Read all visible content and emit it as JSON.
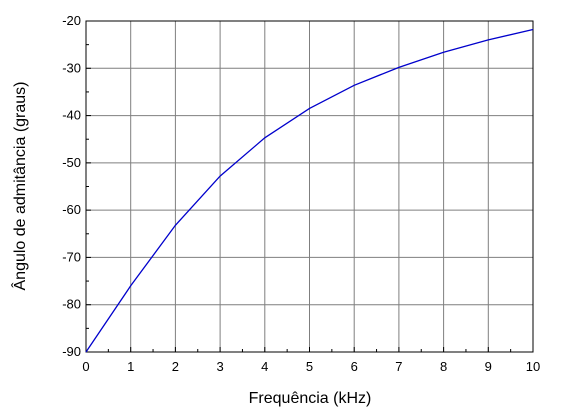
{
  "chart_data": {
    "type": "line",
    "title": "",
    "xlabel": "Frequência (kHz)",
    "ylabel": "Ângulo de admitância (graus)",
    "xlim": [
      0,
      10
    ],
    "ylim": [
      -90,
      -20
    ],
    "xticks": [
      0,
      1,
      2,
      3,
      4,
      5,
      6,
      7,
      8,
      9,
      10
    ],
    "yticks": [
      -90,
      -80,
      -70,
      -60,
      -50,
      -40,
      -30,
      -20
    ],
    "grid": true,
    "series": [
      {
        "color": "#0000cc",
        "x": [
          0,
          1,
          2,
          3,
          4,
          5,
          6,
          7,
          8,
          9,
          10
        ],
        "y": [
          -90,
          -76,
          -63.2,
          -52.8,
          -44.7,
          -38.5,
          -33.6,
          -29.8,
          -26.6,
          -24.0,
          -21.8
        ]
      }
    ]
  }
}
